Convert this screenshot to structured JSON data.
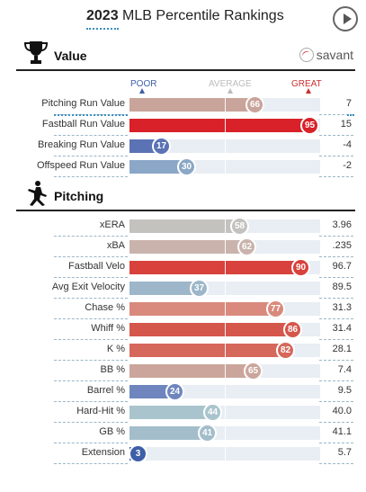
{
  "header": {
    "year": "2023",
    "title": "MLB Percentile Rankings"
  },
  "sections": {
    "value": {
      "title": "Value",
      "brand": "savant"
    },
    "pitching": {
      "title": "Pitching"
    }
  },
  "scale": {
    "poor": "POOR",
    "average": "AVERAGE",
    "great": "GREAT"
  },
  "value_rows": [
    {
      "label": "Pitching Run Value",
      "percentile": "66",
      "value": "7",
      "color": "#c9a49a"
    },
    {
      "label": "Fastball Run Value",
      "percentile": "95",
      "value": "15",
      "color": "#d82129"
    },
    {
      "label": "Breaking Run Value",
      "percentile": "17",
      "value": "-4",
      "color": "#5b72b4"
    },
    {
      "label": "Offspeed Run Value",
      "percentile": "30",
      "value": "-2",
      "color": "#8ba7c7"
    }
  ],
  "pitching_rows": [
    {
      "label": "xERA",
      "percentile": "58",
      "value": "3.96",
      "color": "#c4c2bf"
    },
    {
      "label": "xBA",
      "percentile": "62",
      "value": ".235",
      "color": "#c9b3ac"
    },
    {
      "label": "Fastball Velo",
      "percentile": "90",
      "value": "96.7",
      "color": "#d8413c"
    },
    {
      "label": "Avg Exit Velocity",
      "percentile": "37",
      "value": "89.5",
      "color": "#9db6c9"
    },
    {
      "label": "Chase %",
      "percentile": "77",
      "value": "31.3",
      "color": "#d98a7c"
    },
    {
      "label": "Whiff %",
      "percentile": "86",
      "value": "31.4",
      "color": "#d5564b"
    },
    {
      "label": "K %",
      "percentile": "82",
      "value": "28.1",
      "color": "#d6675b"
    },
    {
      "label": "BB %",
      "percentile": "65",
      "value": "7.4",
      "color": "#cba59b"
    },
    {
      "label": "Barrel %",
      "percentile": "24",
      "value": "9.5",
      "color": "#6e86bd"
    },
    {
      "label": "Hard-Hit %",
      "percentile": "44",
      "value": "40.0",
      "color": "#a9c4cc"
    },
    {
      "label": "GB %",
      "percentile": "41",
      "value": "41.1",
      "color": "#a3bdcb"
    },
    {
      "label": "Extension",
      "percentile": "3",
      "value": "5.7",
      "color": "#3d5fa8"
    }
  ]
}
